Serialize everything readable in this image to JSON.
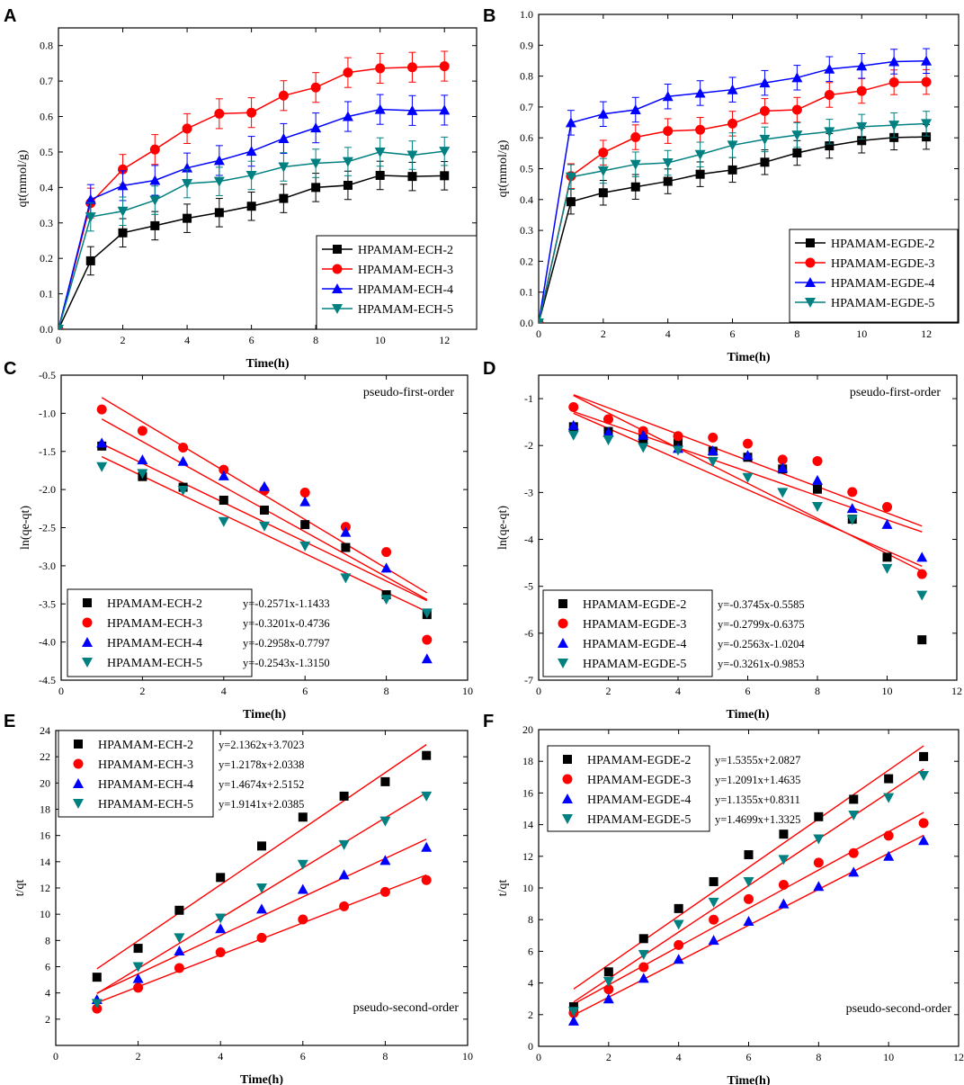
{
  "chart_data": [
    {
      "id": "A",
      "type": "line",
      "panel_label": "A",
      "title": "",
      "xlabel": "Time(h)",
      "ylabel": "qt(mmol/g)",
      "xlim": [
        0,
        13
      ],
      "ylim": [
        0,
        0.85
      ],
      "xticks": [
        0,
        2,
        4,
        6,
        8,
        10,
        12
      ],
      "yticks": [
        0,
        0.1,
        0.2,
        0.3,
        0.4,
        0.5,
        0.6,
        0.7,
        0.8
      ],
      "ytick_labels": [
        "0.0",
        "0.1",
        "0.2",
        "0.3",
        "0.4",
        "0.5",
        "0.6",
        "0.7",
        "0.8"
      ],
      "legend_position": "bottom-right",
      "x": [
        0,
        1,
        2,
        3,
        4,
        5,
        6,
        7,
        8,
        9,
        10,
        11,
        12
      ],
      "series": [
        {
          "name": "HPAMAM-ECH-2",
          "color": "#000000",
          "marker": "square",
          "values": [
            0,
            0.193,
            0.272,
            0.292,
            0.313,
            0.329,
            0.347,
            0.369,
            0.4,
            0.406,
            0.434,
            0.431,
            0.433
          ],
          "err": 0.04
        },
        {
          "name": "HPAMAM-ECH-3",
          "color": "#ff0000",
          "marker": "circle",
          "values": [
            0,
            0.356,
            0.451,
            0.507,
            0.566,
            0.608,
            0.611,
            0.659,
            0.682,
            0.724,
            0.736,
            0.739,
            0.742
          ],
          "err": 0.042
        },
        {
          "name": "HPAMAM-ECH-4",
          "color": "#0000ff",
          "marker": "triangle-up",
          "values": [
            0,
            0.366,
            0.405,
            0.42,
            0.455,
            0.476,
            0.502,
            0.538,
            0.568,
            0.6,
            0.62,
            0.617,
            0.618
          ],
          "err": 0.042
        },
        {
          "name": "HPAMAM-ECH-5",
          "color": "#008080",
          "marker": "triangle-down",
          "values": [
            0,
            0.317,
            0.333,
            0.364,
            0.411,
            0.417,
            0.434,
            0.458,
            0.468,
            0.473,
            0.5,
            0.491,
            0.502
          ],
          "err": 0.04
        }
      ]
    },
    {
      "id": "B",
      "type": "line",
      "panel_label": "B",
      "title": "",
      "xlabel": "Time(h)",
      "ylabel": "qt(mmol/g)",
      "xlim": [
        0,
        13
      ],
      "ylim": [
        0,
        1.0
      ],
      "xticks": [
        0,
        2,
        4,
        6,
        8,
        10,
        12
      ],
      "yticks": [
        0,
        0.1,
        0.2,
        0.3,
        0.4,
        0.5,
        0.6,
        0.7,
        0.8,
        0.9,
        1.0
      ],
      "ytick_labels": [
        "0.0",
        "0.1",
        "0.2",
        "0.3",
        "0.4",
        "0.5",
        "0.6",
        "0.7",
        "0.8",
        "0.9",
        "1.0"
      ],
      "legend_position": "bottom-right",
      "x": [
        0,
        1,
        2,
        3,
        4,
        5,
        6,
        7,
        8,
        9,
        10,
        11,
        12
      ],
      "series": [
        {
          "name": "HPAMAM-EGDE-2",
          "color": "#000000",
          "marker": "square",
          "values": [
            0,
            0.393,
            0.422,
            0.441,
            0.459,
            0.482,
            0.496,
            0.521,
            0.551,
            0.574,
            0.591,
            0.601,
            0.603
          ],
          "err": 0.04
        },
        {
          "name": "HPAMAM-EGDE-3",
          "color": "#ff0000",
          "marker": "circle",
          "values": [
            0,
            0.476,
            0.552,
            0.602,
            0.622,
            0.626,
            0.646,
            0.687,
            0.691,
            0.739,
            0.752,
            0.78,
            0.781
          ],
          "err": 0.04
        },
        {
          "name": "HPAMAM-EGDE-4",
          "color": "#0000ff",
          "marker": "triangle-up",
          "values": [
            0,
            0.649,
            0.677,
            0.691,
            0.734,
            0.745,
            0.756,
            0.778,
            0.795,
            0.823,
            0.833,
            0.847,
            0.849
          ],
          "err": 0.04
        },
        {
          "name": "HPAMAM-EGDE-5",
          "color": "#008080",
          "marker": "triangle-down",
          "values": [
            0,
            0.473,
            0.493,
            0.514,
            0.519,
            0.546,
            0.576,
            0.595,
            0.609,
            0.62,
            0.636,
            0.641,
            0.646
          ],
          "err": 0.04
        }
      ]
    },
    {
      "id": "C",
      "type": "scatter",
      "panel_label": "C",
      "title": "",
      "annotation": "pseudo-first-order",
      "annotation_position": "top-right",
      "xlabel": "Time(h)",
      "ylabel": "ln(qe-qt)",
      "xlim": [
        0,
        10
      ],
      "ylim": [
        -4.5,
        -0.5
      ],
      "xticks": [
        0,
        2,
        4,
        6,
        8,
        10
      ],
      "yticks": [
        -4.5,
        -4.0,
        -3.5,
        -3.0,
        -2.5,
        -2.0,
        -1.5,
        -1.0,
        -0.5
      ],
      "ytick_labels": [
        "-4.5",
        "-4.0",
        "-3.5",
        "-3.0",
        "-2.5",
        "-2.0",
        "-1.5",
        "-1.0",
        "-0.5"
      ],
      "legend_position": "bottom-left",
      "fit_x_range": [
        1,
        9
      ],
      "fit_color": "#ff0000",
      "x": [
        1,
        2,
        3,
        4,
        5,
        6,
        7,
        8,
        9
      ],
      "series": [
        {
          "name": "HPAMAM-ECH-2",
          "color": "#000000",
          "marker": "square",
          "values": [
            -1.43,
            -1.83,
            -1.97,
            -2.14,
            -2.27,
            -2.46,
            -2.76,
            -3.38,
            -3.64
          ],
          "equation": "y=-0.2571x-1.1433",
          "slope": -0.2571,
          "intercept": -1.1433
        },
        {
          "name": "HPAMAM-ECH-3",
          "color": "#ff0000",
          "marker": "circle",
          "values": [
            -0.95,
            -1.23,
            -1.45,
            -1.74,
            -2.01,
            -2.04,
            -2.49,
            -2.82,
            -3.97
          ],
          "equation": "y=-0.3201x-0.4736",
          "slope": -0.3201,
          "intercept": -0.4736
        },
        {
          "name": "HPAMAM-ECH-4",
          "color": "#0000ff",
          "marker": "triangle-up",
          "values": [
            -1.39,
            -1.61,
            -1.63,
            -1.82,
            -1.96,
            -2.16,
            -2.56,
            -3.03,
            -4.22
          ],
          "equation": "y=-0.2958x-0.7797",
          "slope": -0.2958,
          "intercept": -0.7797
        },
        {
          "name": "HPAMAM-ECH-5",
          "color": "#008080",
          "marker": "triangle-down",
          "values": [
            -1.7,
            -1.79,
            -2.01,
            -2.42,
            -2.48,
            -2.74,
            -3.16,
            -3.44,
            -3.62
          ],
          "equation": "y=-0.2543x-1.3150",
          "slope": -0.2543,
          "intercept": -1.315
        }
      ]
    },
    {
      "id": "D",
      "type": "scatter",
      "panel_label": "D",
      "title": "",
      "annotation": "pseudo-first-order",
      "annotation_position": "top-right",
      "xlabel": "Time(h)",
      "ylabel": "ln(qe-qt)",
      "xlim": [
        0,
        12
      ],
      "ylim": [
        -7,
        -0.5
      ],
      "xticks": [
        0,
        2,
        4,
        6,
        8,
        10,
        12
      ],
      "yticks": [
        -7,
        -6,
        -5,
        -4,
        -3,
        -2,
        -1
      ],
      "ytick_labels": [
        "-7",
        "-6",
        "-5",
        "-4",
        "-3",
        "-2",
        "-1"
      ],
      "legend_position": "bottom-left",
      "fit_x_range": [
        1,
        11
      ],
      "fit_color": "#ff0000",
      "x": [
        1,
        2,
        3,
        4,
        5,
        6,
        7,
        8,
        9,
        10,
        11
      ],
      "series": [
        {
          "name": "HPAMAM-EGDE-2",
          "color": "#000000",
          "marker": "square",
          "values": [
            -1.6,
            -1.7,
            -1.86,
            -1.95,
            -2.12,
            -2.25,
            -2.5,
            -2.93,
            -3.57,
            -4.38,
            -6.14
          ],
          "equation": "y=-0.3745x-0.5585",
          "slope": -0.3745,
          "intercept": -0.5585
        },
        {
          "name": "HPAMAM-EGDE-3",
          "color": "#ff0000",
          "marker": "circle",
          "values": [
            -1.18,
            -1.44,
            -1.69,
            -1.8,
            -1.83,
            -1.96,
            -2.3,
            -2.33,
            -2.99,
            -3.31,
            -4.74
          ],
          "equation": "y=-0.2799x-0.6375",
          "slope": -0.2799,
          "intercept": -0.6375
        },
        {
          "name": "HPAMAM-EGDE-4",
          "color": "#0000ff",
          "marker": "triangle-up",
          "values": [
            -1.57,
            -1.72,
            -1.78,
            -2.06,
            -2.11,
            -2.21,
            -2.48,
            -2.74,
            -3.34,
            -3.68,
            -4.38
          ],
          "equation": "y=-0.2563x-1.0204",
          "slope": -0.2563,
          "intercept": -1.0204
        },
        {
          "name": "HPAMAM-EGDE-5",
          "color": "#008080",
          "marker": "triangle-down",
          "values": [
            -1.78,
            -1.88,
            -2.04,
            -2.1,
            -2.34,
            -2.68,
            -3.0,
            -3.3,
            -3.58,
            -4.62,
            -5.19
          ],
          "equation": "y=-0.3261x-0.9853",
          "slope": -0.3261,
          "intercept": -0.9853
        }
      ]
    },
    {
      "id": "E",
      "type": "scatter",
      "panel_label": "E",
      "title": "",
      "annotation": "pseudo-second-order",
      "annotation_position": "bottom-right",
      "xlabel": "Time(h)",
      "ylabel": "t/qt",
      "xlim": [
        0,
        10
      ],
      "ylim": [
        0,
        24
      ],
      "xticks": [
        0,
        2,
        4,
        6,
        8,
        10
      ],
      "yticks": [
        2,
        4,
        6,
        8,
        10,
        12,
        14,
        16,
        18,
        20,
        22,
        24
      ],
      "ytick_labels": [
        "2",
        "4",
        "6",
        "8",
        "10",
        "12",
        "14",
        "16",
        "18",
        "20",
        "22",
        "24"
      ],
      "legend_position": "top-left",
      "fit_x_range": [
        1,
        9
      ],
      "fit_color": "#ff0000",
      "x": [
        1,
        2,
        3,
        4,
        5,
        6,
        7,
        8,
        9
      ],
      "series": [
        {
          "name": "HPAMAM-ECH-2",
          "color": "#000000",
          "marker": "square",
          "values": [
            5.2,
            7.4,
            10.3,
            12.8,
            15.2,
            17.4,
            19.0,
            20.1,
            22.1
          ],
          "equation": "y=2.1362x+3.7023",
          "slope": 2.1362,
          "intercept": 3.7023
        },
        {
          "name": "HPAMAM-ECH-3",
          "color": "#ff0000",
          "marker": "circle",
          "values": [
            2.8,
            4.4,
            5.9,
            7.1,
            8.2,
            9.6,
            10.6,
            11.7,
            12.6
          ],
          "equation": "y=1.2178x+2.0338",
          "slope": 1.2178,
          "intercept": 2.0338
        },
        {
          "name": "HPAMAM-ECH-4",
          "color": "#0000ff",
          "marker": "triangle-up",
          "values": [
            3.5,
            5.1,
            7.2,
            8.9,
            10.4,
            11.9,
            13.0,
            14.1,
            15.1
          ],
          "equation": "y=1.4674x+2.5152",
          "slope": 1.4674,
          "intercept": 2.5152
        },
        {
          "name": "HPAMAM-ECH-5",
          "color": "#008080",
          "marker": "triangle-down",
          "values": [
            3.2,
            6.0,
            8.2,
            9.7,
            12.0,
            13.8,
            15.3,
            17.1,
            19.0
          ],
          "equation": "y=1.9141x+2.0385",
          "slope": 1.9141,
          "intercept": 2.0385
        }
      ]
    },
    {
      "id": "F",
      "type": "scatter",
      "panel_label": "F",
      "title": "",
      "annotation": "pseudo-second-order",
      "annotation_position": "bottom-right",
      "xlabel": "Time(h)",
      "ylabel": "t/qt",
      "xlim": [
        0,
        12
      ],
      "ylim": [
        0,
        20
      ],
      "xticks": [
        0,
        2,
        4,
        6,
        8,
        10,
        12
      ],
      "yticks": [
        0,
        2,
        4,
        6,
        8,
        10,
        12,
        14,
        16,
        18,
        20
      ],
      "ytick_labels": [
        "0",
        "2",
        "4",
        "6",
        "8",
        "10",
        "12",
        "14",
        "16",
        "18",
        "20"
      ],
      "legend_position": "top-left",
      "fit_x_range": [
        1,
        11
      ],
      "fit_color": "#ff0000",
      "x": [
        1,
        2,
        3,
        4,
        5,
        6,
        7,
        8,
        9,
        10,
        11
      ],
      "series": [
        {
          "name": "HPAMAM-EGDE-2",
          "color": "#000000",
          "marker": "square",
          "values": [
            2.5,
            4.7,
            6.8,
            8.7,
            10.4,
            12.1,
            13.4,
            14.5,
            15.6,
            16.9,
            18.3
          ],
          "equation": "y=1.5355x+2.0827",
          "slope": 1.5355,
          "intercept": 2.0827
        },
        {
          "name": "HPAMAM-EGDE-3",
          "color": "#ff0000",
          "marker": "circle",
          "values": [
            2.1,
            3.6,
            5.0,
            6.4,
            8.0,
            9.3,
            10.2,
            11.6,
            12.2,
            13.3,
            14.1
          ],
          "equation": "y=1.2091x+1.4635",
          "slope": 1.2091,
          "intercept": 1.4635
        },
        {
          "name": "HPAMAM-EGDE-4",
          "color": "#0000ff",
          "marker": "triangle-up",
          "values": [
            1.6,
            3.0,
            4.3,
            5.5,
            6.7,
            7.9,
            9.0,
            10.1,
            11.0,
            12.0,
            13.0
          ],
          "equation": "y=1.1355x+0.8311",
          "slope": 1.1355,
          "intercept": 0.8311
        },
        {
          "name": "HPAMAM-EGDE-5",
          "color": "#008080",
          "marker": "triangle-down",
          "values": [
            2.2,
            4.1,
            5.8,
            7.7,
            9.1,
            10.4,
            11.8,
            13.1,
            14.6,
            15.7,
            17.1
          ],
          "equation": "y=1.4699x+1.3325",
          "slope": 1.4699,
          "intercept": 1.3325
        }
      ]
    }
  ]
}
